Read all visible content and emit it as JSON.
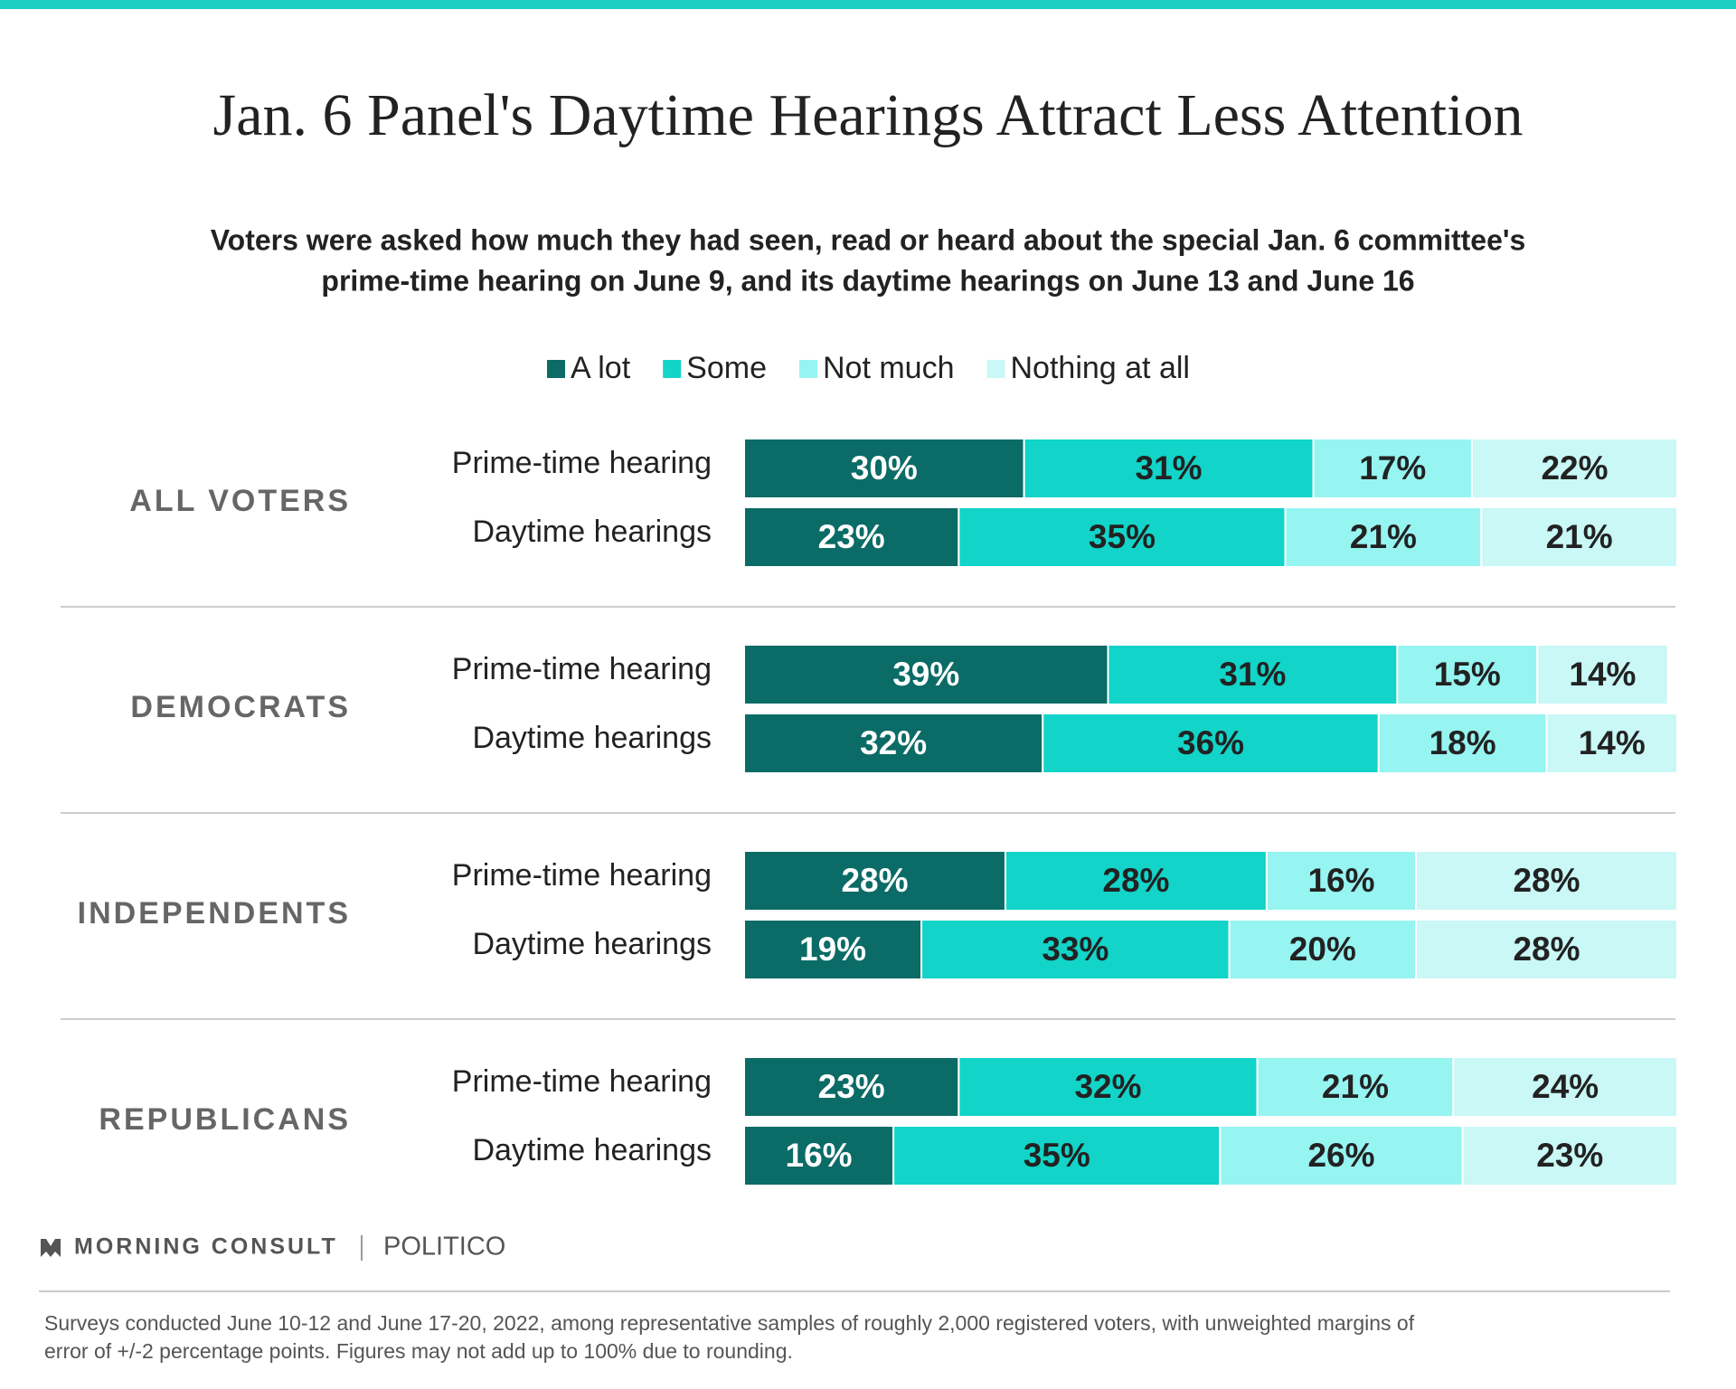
{
  "chart_data": {
    "type": "stacked-bar",
    "title": "Jan. 6 Panel's Daytime Hearings Attract Less Attention",
    "subtitle": [
      "Voters were asked how much they had seen, read or heard about the special Jan. 6 committee's",
      "prime-time hearing on June 9, and its daytime hearings on June 13 and June 16"
    ],
    "groups": [
      "ALL VOTERS",
      "DEMOCRATS",
      "INDEPENDENTS",
      "REPUBLICANS"
    ],
    "categories": [
      "Prime-time hearing",
      "Daytime hearings",
      "Prime-time hearing",
      "Daytime hearings",
      "Prime-time hearing",
      "Daytime hearings",
      "Prime-time hearing",
      "Daytime hearings"
    ],
    "xlim": [
      0,
      100
    ],
    "legend": "top",
    "series": [
      {
        "name": "A lot",
        "color": "#0b6b66",
        "values": [
          30,
          23,
          39,
          32,
          28,
          19,
          23,
          16
        ],
        "value_labels": [
          "30%",
          "23%",
          "39%",
          "32%",
          "28%",
          "19%",
          "23%",
          "16%"
        ]
      },
      {
        "name": "Some",
        "color": "#12d4c8",
        "values": [
          31,
          35,
          31,
          36,
          28,
          33,
          32,
          35
        ],
        "value_labels": [
          "31%",
          "35%",
          "31%",
          "36%",
          "28%",
          "33%",
          "32%",
          "35%"
        ]
      },
      {
        "name": "Not much",
        "color": "#96f4f1",
        "values": [
          17,
          21,
          15,
          18,
          16,
          20,
          21,
          26
        ],
        "value_labels": [
          "17%",
          "21%",
          "15%",
          "18%",
          "16%",
          "20%",
          "21%",
          "26%"
        ]
      },
      {
        "name": "Nothing at all",
        "color": "#c9f8f6",
        "values": [
          22,
          21,
          14,
          14,
          28,
          28,
          24,
          23
        ],
        "value_labels": [
          "22%",
          "21%",
          "14%",
          "14%",
          "28%",
          "28%",
          "24%",
          "23%"
        ]
      }
    ],
    "logos": [
      "MORNING CONSULT",
      "POLITICO"
    ],
    "note": [
      "Surveys conducted June 10-12 and June 17-20, 2022, among representative samples of roughly 2,000 registered voters, with unweighted margins of",
      "error of +/-2 percentage points. Figures may not add up to 100% due to rounding."
    ]
  }
}
